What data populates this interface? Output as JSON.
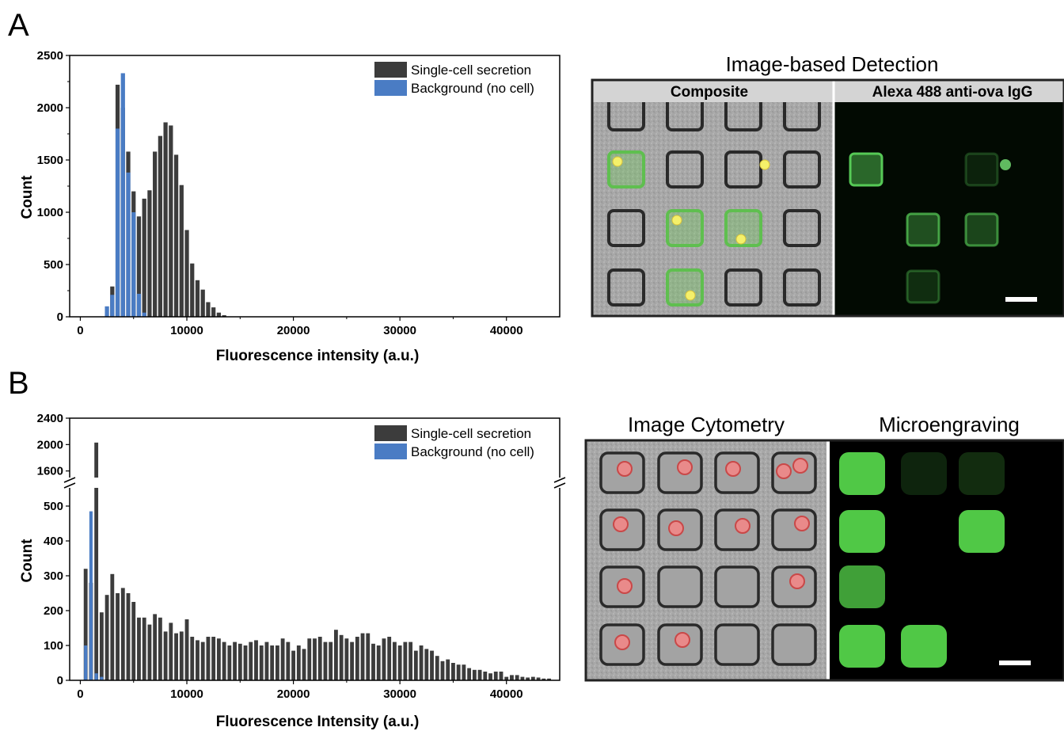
{
  "panels": {
    "a_letter": "A",
    "b_letter": "B"
  },
  "colors": {
    "secretion": "#3c3c3c",
    "background": "#4a7cc4",
    "green": "#48c048",
    "red_cell": "#e05a5a"
  },
  "images": {
    "a_title": "Image-based Detection",
    "a_left_label": "Composite",
    "a_right_label": "Alexa 488 anti-ova IgG",
    "b_left_title": "Image Cytometry",
    "b_right_title": "Microengraving"
  },
  "chart_data": [
    {
      "type": "bar",
      "panel": "A",
      "title": "",
      "xlabel": "Fluorescence intensity (a.u.)",
      "ylabel": "Count",
      "xlim": [
        -1000,
        45000
      ],
      "ylim": [
        0,
        2500
      ],
      "xticks": [
        0,
        10000,
        20000,
        30000,
        40000
      ],
      "yticks": [
        0,
        500,
        1000,
        1500,
        2000,
        2500
      ],
      "legend_position": "top-right",
      "bin_width": 500,
      "series": [
        {
          "name": "Single-cell secretion",
          "color": "#3c3c3c",
          "x": [
            3000,
            3500,
            4000,
            4500,
            5000,
            5500,
            6000,
            6500,
            7000,
            7500,
            8000,
            8500,
            9000,
            9500,
            10000,
            10500,
            11000,
            11500,
            12000,
            12500,
            13000,
            13500
          ],
          "values": [
            290,
            2220,
            2000,
            1580,
            1200,
            960,
            1130,
            1210,
            1580,
            1730,
            1860,
            1830,
            1550,
            1260,
            830,
            510,
            350,
            260,
            140,
            90,
            40,
            15
          ]
        },
        {
          "name": "Background (no cell)",
          "color": "#4a7cc4",
          "x": [
            2500,
            3000,
            3500,
            4000,
            4500,
            5000,
            5500,
            6000
          ],
          "values": [
            100,
            210,
            1800,
            2330,
            1380,
            1000,
            220,
            40
          ]
        }
      ]
    },
    {
      "type": "bar",
      "panel": "B",
      "title": "",
      "xlabel": "Fluorescence Intensity (a.u.)",
      "ylabel": "Count",
      "xlim": [
        -1000,
        45000
      ],
      "ylim_lower": [
        0,
        550
      ],
      "ylim_upper": [
        1500,
        2400
      ],
      "axis_break": true,
      "xticks": [
        0,
        10000,
        20000,
        30000,
        40000
      ],
      "yticks_lower": [
        0,
        100,
        200,
        300,
        400,
        500
      ],
      "yticks_upper": [
        1600,
        2000,
        2400
      ],
      "legend_position": "top-right",
      "bin_width": 500,
      "series": [
        {
          "name": "Single-cell secretion",
          "color": "#3c3c3c",
          "x": [
            500,
            1000,
            1500,
            2000,
            2500,
            3000,
            3500,
            4000,
            4500,
            5000,
            5500,
            6000,
            6500,
            7000,
            7500,
            8000,
            8500,
            9000,
            9500,
            10000,
            10500,
            11000,
            11500,
            12000,
            12500,
            13000,
            13500,
            14000,
            14500,
            15000,
            15500,
            16000,
            16500,
            17000,
            17500,
            18000,
            18500,
            19000,
            19500,
            20000,
            20500,
            21000,
            21500,
            22000,
            22500,
            23000,
            23500,
            24000,
            24500,
            25000,
            25500,
            26000,
            26500,
            27000,
            27500,
            28000,
            28500,
            29000,
            29500,
            30000,
            30500,
            31000,
            31500,
            32000,
            32500,
            33000,
            33500,
            34000,
            34500,
            35000,
            35500,
            36000,
            36500,
            37000,
            37500,
            38000,
            38500,
            39000,
            39500,
            40000,
            40500,
            41000,
            41500,
            42000,
            42500,
            43000,
            43500,
            44000
          ],
          "values": [
            320,
            280,
            2030,
            195,
            245,
            305,
            250,
            265,
            250,
            225,
            180,
            180,
            160,
            190,
            180,
            140,
            165,
            135,
            140,
            175,
            125,
            115,
            110,
            125,
            125,
            120,
            110,
            100,
            110,
            105,
            100,
            110,
            115,
            100,
            110,
            100,
            100,
            120,
            110,
            85,
            100,
            90,
            120,
            120,
            125,
            110,
            110,
            145,
            130,
            120,
            110,
            125,
            135,
            135,
            105,
            100,
            120,
            125,
            110,
            100,
            110,
            110,
            85,
            100,
            90,
            85,
            70,
            55,
            60,
            50,
            45,
            45,
            35,
            30,
            30,
            25,
            20,
            25,
            25,
            10,
            15,
            15,
            10,
            8,
            10,
            8,
            5,
            5
          ]
        },
        {
          "name": "Background (no cell)",
          "color": "#4a7cc4",
          "x": [
            500,
            1000,
            1500,
            2000
          ],
          "values": [
            100,
            485,
            20,
            10
          ]
        }
      ]
    }
  ]
}
